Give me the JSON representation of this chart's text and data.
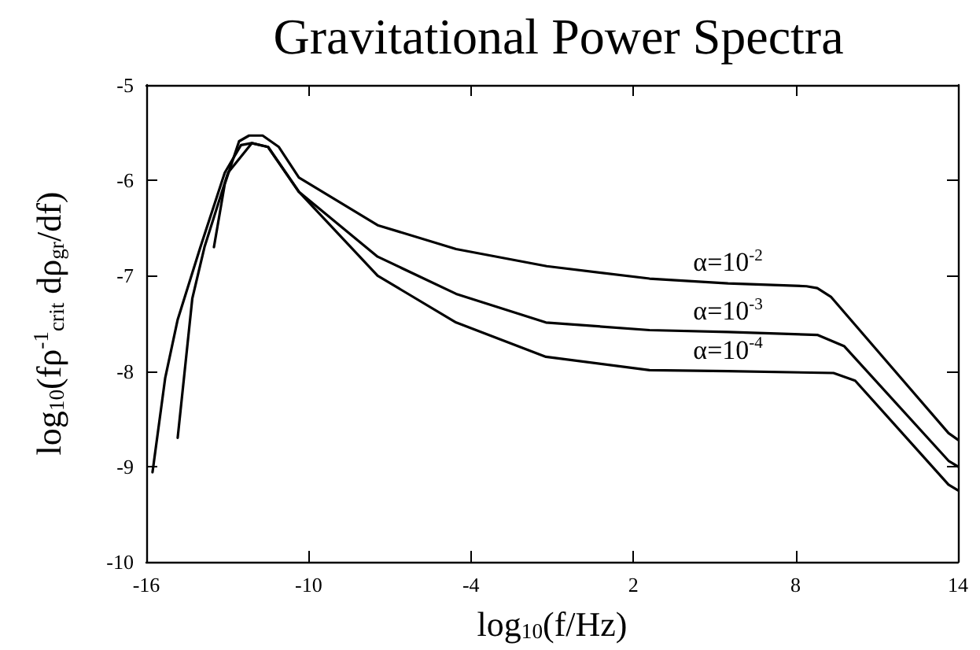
{
  "chart_data": {
    "type": "line",
    "title": "Gravitational Power Spectra",
    "xlabel": "log$_{10}$(f/Hz)",
    "ylabel": "log$_{10}$(fρ$^{-1}$$_{crit}$ dρ$_{gr}$/df)",
    "xlim": [
      -16,
      14
    ],
    "xticks": [
      -16,
      -10,
      -4,
      2,
      8,
      14
    ],
    "ylim": [
      -10,
      -5
    ],
    "yticks": [
      -10,
      -9,
      -8,
      -7,
      -6,
      -5
    ],
    "grid": false,
    "legend": false,
    "marker": "none",
    "line_style": "solid",
    "series": [
      {
        "name": "α=10$^{-2}$",
        "color": "#000000",
        "x": [
          -13.5,
          -13.1,
          -12.57,
          -12.2,
          -11.7,
          -11.1,
          -10.36,
          -7.45,
          -4.55,
          -1.2,
          2.6,
          5.5,
          8.4,
          8.8,
          9.3,
          13.65,
          14
        ],
        "values": [
          -6.7,
          -6.04,
          -5.59,
          -5.53,
          -5.53,
          -5.65,
          -5.97,
          -6.47,
          -6.72,
          -6.9,
          -7.03,
          -7.08,
          -7.11,
          -7.13,
          -7.22,
          -8.65,
          -8.72
        ]
      },
      {
        "name": "α=10$^{-3}$",
        "color": "#000000",
        "x": [
          -14.84,
          -14.3,
          -13.85,
          -12.98,
          -12.1,
          -11.5,
          -10.36,
          -7.45,
          -4.55,
          -1.23,
          2.6,
          5.5,
          8.8,
          9.8,
          13.65,
          14
        ],
        "values": [
          -8.7,
          -7.24,
          -6.7,
          -5.92,
          -5.61,
          -5.65,
          -6.12,
          -6.8,
          -7.19,
          -7.49,
          -7.57,
          -7.59,
          -7.62,
          -7.74,
          -8.94,
          -9.0
        ]
      },
      {
        "name": "α=10$^{-4}$",
        "color": "#000000",
        "x": [
          -15.77,
          -15.3,
          -14.84,
          -14.0,
          -13.1,
          -12.5,
          -12.1,
          -11.5,
          -10.36,
          -7.45,
          -4.55,
          -1.23,
          2.6,
          5.5,
          9.4,
          10.2,
          13.65,
          14
        ],
        "values": [
          -9.06,
          -8.07,
          -7.46,
          -6.7,
          -5.92,
          -5.63,
          -5.61,
          -5.65,
          -6.12,
          -7.0,
          -7.49,
          -7.85,
          -7.99,
          -8.0,
          -8.02,
          -8.1,
          -9.19,
          -9.25
        ]
      }
    ]
  }
}
